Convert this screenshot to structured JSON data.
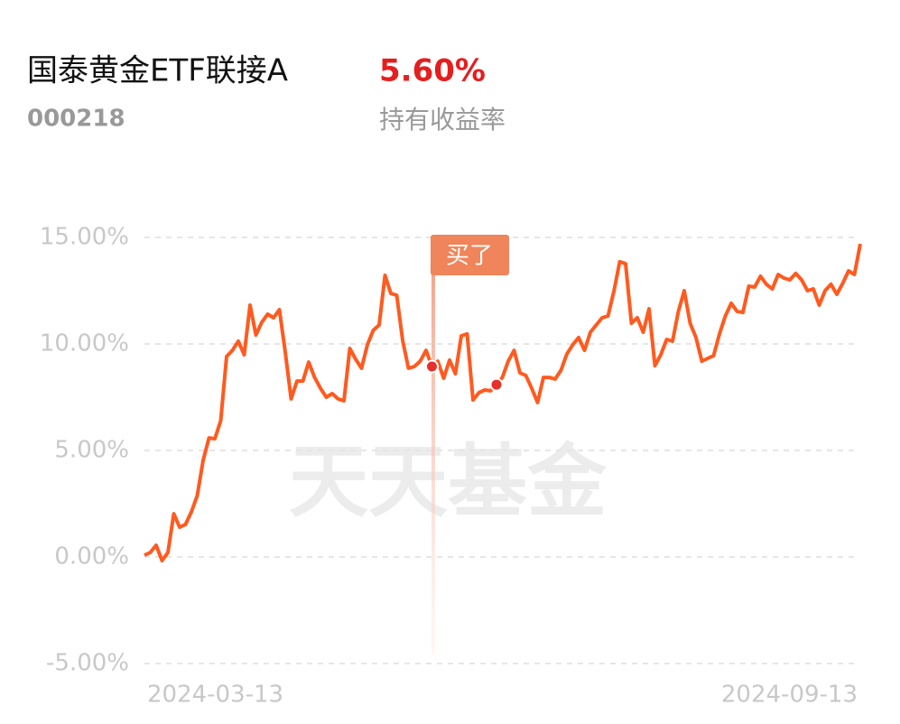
{
  "header": {
    "title": "国泰黄金ETF联接A",
    "return_value": "5.60%",
    "code": "000218",
    "return_label": "持有收益率"
  },
  "watermark": "天天基金",
  "chart_data": {
    "type": "line",
    "color": "#ff5a1f",
    "grid": true,
    "annotation": "买了",
    "ylim": [
      -5,
      15
    ],
    "yticks": [
      {
        "value": -5,
        "label": "-5.00%"
      },
      {
        "value": 0,
        "label": "0.00%"
      },
      {
        "value": 5,
        "label": "5.00%"
      },
      {
        "value": 10,
        "label": "10.00%"
      },
      {
        "value": 15,
        "label": "15.00%"
      }
    ],
    "categories": [
      "2024-03-13",
      null,
      null,
      null,
      null,
      null,
      null,
      null,
      null,
      null,
      null,
      null,
      null,
      null,
      null,
      null,
      null,
      null,
      null,
      null,
      null,
      null,
      null,
      null,
      null,
      null,
      null,
      null,
      null,
      null,
      null,
      null,
      null,
      null,
      null,
      null,
      null,
      null,
      null,
      null,
      null,
      null,
      null,
      null,
      null,
      null,
      null,
      null,
      null,
      null,
      null,
      null,
      null,
      null,
      null,
      null,
      null,
      null,
      null,
      null,
      null,
      null,
      null,
      null,
      null,
      null,
      null,
      null,
      null,
      null,
      null,
      null,
      null,
      null,
      null,
      null,
      null,
      null,
      null,
      null,
      null,
      null,
      null,
      null,
      null,
      null,
      null,
      null,
      null,
      null,
      null,
      null,
      null,
      null,
      null,
      null,
      null,
      null,
      null,
      null,
      null,
      null,
      null,
      null,
      null,
      null,
      null,
      null,
      null,
      null,
      null,
      null,
      null,
      null,
      null,
      null,
      null,
      null,
      null,
      null,
      null,
      null,
      "2024-09-13"
    ],
    "values": [
      0.08,
      0.21,
      0.55,
      -0.17,
      0.21,
      2.03,
      1.4,
      1.53,
      2.12,
      2.88,
      4.53,
      5.59,
      5.55,
      6.4,
      9.41,
      9.7,
      10.13,
      9.49,
      11.82,
      10.42,
      11.02,
      11.4,
      11.23,
      11.61,
      9.62,
      7.42,
      8.26,
      8.26,
      9.15,
      8.43,
      7.92,
      7.5,
      7.67,
      7.42,
      7.33,
      9.79,
      9.28,
      8.86,
      9.96,
      10.64,
      10.89,
      13.22,
      12.37,
      12.29,
      10.17,
      8.86,
      8.94,
      9.19,
      9.7,
      8.94,
      9.19,
      8.39,
      9.24,
      8.6,
      10.38,
      10.47,
      7.37,
      7.71,
      7.84,
      7.8,
      8.09,
      8.43,
      9.19,
      9.7,
      8.64,
      8.52,
      7.92,
      7.25,
      8.43,
      8.43,
      8.35,
      8.77,
      9.53,
      9.96,
      10.3,
      9.7,
      10.55,
      10.89,
      11.23,
      11.31,
      12.46,
      13.86,
      13.77,
      10.97,
      11.23,
      10.55,
      11.65,
      8.98,
      9.49,
      10.21,
      10.13,
      11.53,
      12.5,
      10.97,
      10.3,
      9.19,
      9.32,
      9.45,
      10.47,
      11.31,
      11.91,
      11.53,
      11.48,
      12.71,
      12.67,
      13.18,
      12.8,
      12.58,
      13.26,
      13.09,
      13.01,
      13.31,
      13.01,
      12.5,
      12.58,
      11.82,
      12.5,
      12.8,
      12.33,
      12.84,
      13.43,
      13.26,
      14.7
    ]
  }
}
